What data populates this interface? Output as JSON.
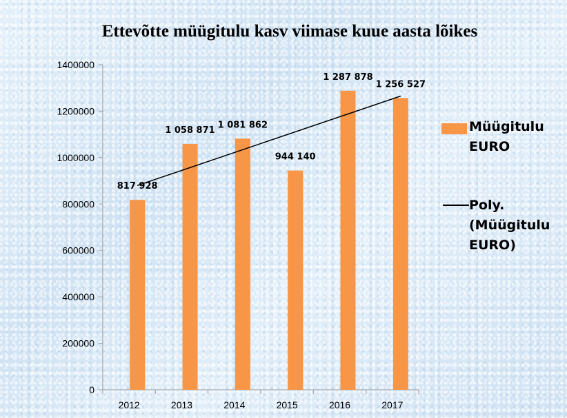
{
  "chart_data": {
    "type": "bar",
    "title": "Ettevõtte müügitulu kasv viimase kuue aasta lõikes",
    "categories": [
      "2012",
      "2013",
      "2014",
      "2015",
      "2016",
      "2017"
    ],
    "series": [
      {
        "name": "Müügitulu EURO",
        "values": [
          817928,
          1058871,
          1081862,
          944140,
          1287878,
          1256527
        ],
        "value_labels": [
          "817 928",
          "1 058 871",
          "1 081 862",
          "944 140",
          "1 287 878",
          "1 256 527"
        ],
        "color": "#f79646"
      }
    ],
    "trendline": {
      "name": "Poly. (Müügitulu EURO)",
      "type": "linear",
      "start_value": 880000,
      "end_value": 1265000,
      "color": "#000000"
    },
    "ylim": [
      0,
      1400000
    ],
    "yticks": [
      0,
      200000,
      400000,
      600000,
      800000,
      1000000,
      1200000,
      1400000
    ],
    "ytick_labels": [
      "0",
      "200000",
      "400000",
      "600000",
      "800000",
      "1000000",
      "1200000",
      "1400000"
    ],
    "grid": false,
    "legend_position": "right",
    "legend": [
      {
        "label": "Müügitulu\nEURO"
      },
      {
        "label": "Poly.\n(Müügitulu\nEURO)"
      }
    ]
  }
}
